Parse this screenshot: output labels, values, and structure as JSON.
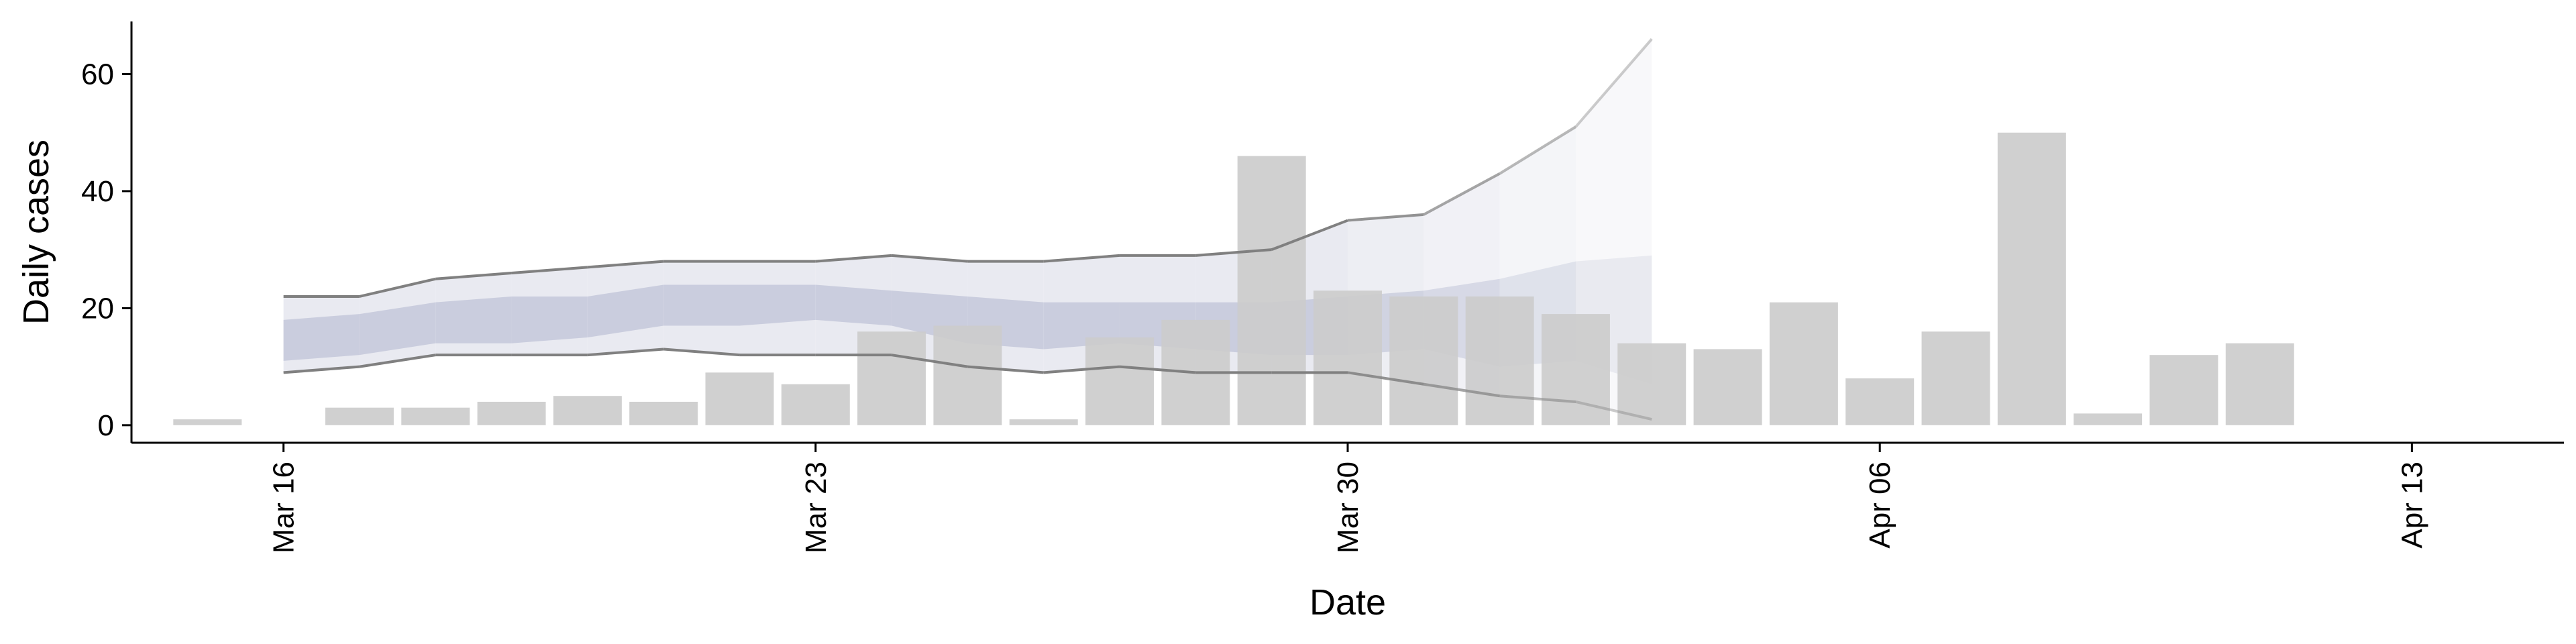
{
  "chart_data": {
    "type": "bar",
    "title": "",
    "xlabel": "Date",
    "ylabel": "Daily cases",
    "x_start": "2020-03-15",
    "ylim": [
      -3,
      69
    ],
    "yticks": [
      0,
      20,
      40,
      60
    ],
    "yticks_labels": [
      "0",
      "20",
      "40",
      "60"
    ],
    "xticks": [
      "2020-03-16",
      "2020-03-23",
      "2020-03-30",
      "2020-04-06",
      "2020-04-13"
    ],
    "xticks_labels": [
      "Mar 16",
      "Mar 23",
      "Mar 30",
      "Apr 06",
      "Apr 13"
    ],
    "xlim": [
      "2020-03-14",
      "2020-04-15"
    ],
    "grid": false,
    "bars": {
      "dates": [
        "2020-03-15",
        "2020-03-16",
        "2020-03-17",
        "2020-03-18",
        "2020-03-19",
        "2020-03-20",
        "2020-03-21",
        "2020-03-22",
        "2020-03-23",
        "2020-03-24",
        "2020-03-25",
        "2020-03-26",
        "2020-03-27",
        "2020-03-28",
        "2020-03-29",
        "2020-03-30",
        "2020-03-31",
        "2020-04-01",
        "2020-04-02",
        "2020-04-03",
        "2020-04-04",
        "2020-04-05",
        "2020-04-06",
        "2020-04-07",
        "2020-04-08",
        "2020-04-09",
        "2020-04-10",
        "2020-04-11",
        "2020-04-12"
      ],
      "values": [
        1,
        0,
        3,
        3,
        4,
        5,
        4,
        9,
        7,
        16,
        17,
        1,
        15,
        18,
        46,
        23,
        22,
        22,
        19,
        14,
        13,
        21,
        8,
        16,
        50,
        2,
        12,
        14,
        0
      ],
      "color": "#cccccc"
    },
    "forecast": {
      "dates": [
        "2020-03-16",
        "2020-03-17",
        "2020-03-18",
        "2020-03-19",
        "2020-03-20",
        "2020-03-21",
        "2020-03-22",
        "2020-03-23",
        "2020-03-24",
        "2020-03-25",
        "2020-03-26",
        "2020-03-27",
        "2020-03-28",
        "2020-03-29",
        "2020-03-30",
        "2020-03-31",
        "2020-04-01",
        "2020-04-02",
        "2020-04-03"
      ],
      "upper_90": [
        22,
        22,
        25,
        26,
        27,
        28,
        28,
        28,
        29,
        28,
        28,
        29,
        29,
        30,
        35,
        36,
        43,
        51,
        66
      ],
      "lower_90": [
        9,
        10,
        12,
        12,
        12,
        13,
        12,
        12,
        12,
        10,
        9,
        10,
        9,
        9,
        9,
        7,
        5,
        4,
        1
      ],
      "upper_50": [
        18,
        19,
        21,
        22,
        22,
        24,
        24,
        24,
        23,
        22,
        21,
        21,
        21,
        21,
        22,
        23,
        25,
        28,
        29
      ],
      "lower_50": [
        11,
        12,
        14,
        14,
        15,
        17,
        17,
        18,
        17,
        14,
        13,
        14,
        13,
        12,
        12,
        13,
        10,
        11,
        7
      ],
      "color_outer": "#e9eaf1",
      "color_inner": "#c8cbdc",
      "line_color": "#808080"
    }
  }
}
